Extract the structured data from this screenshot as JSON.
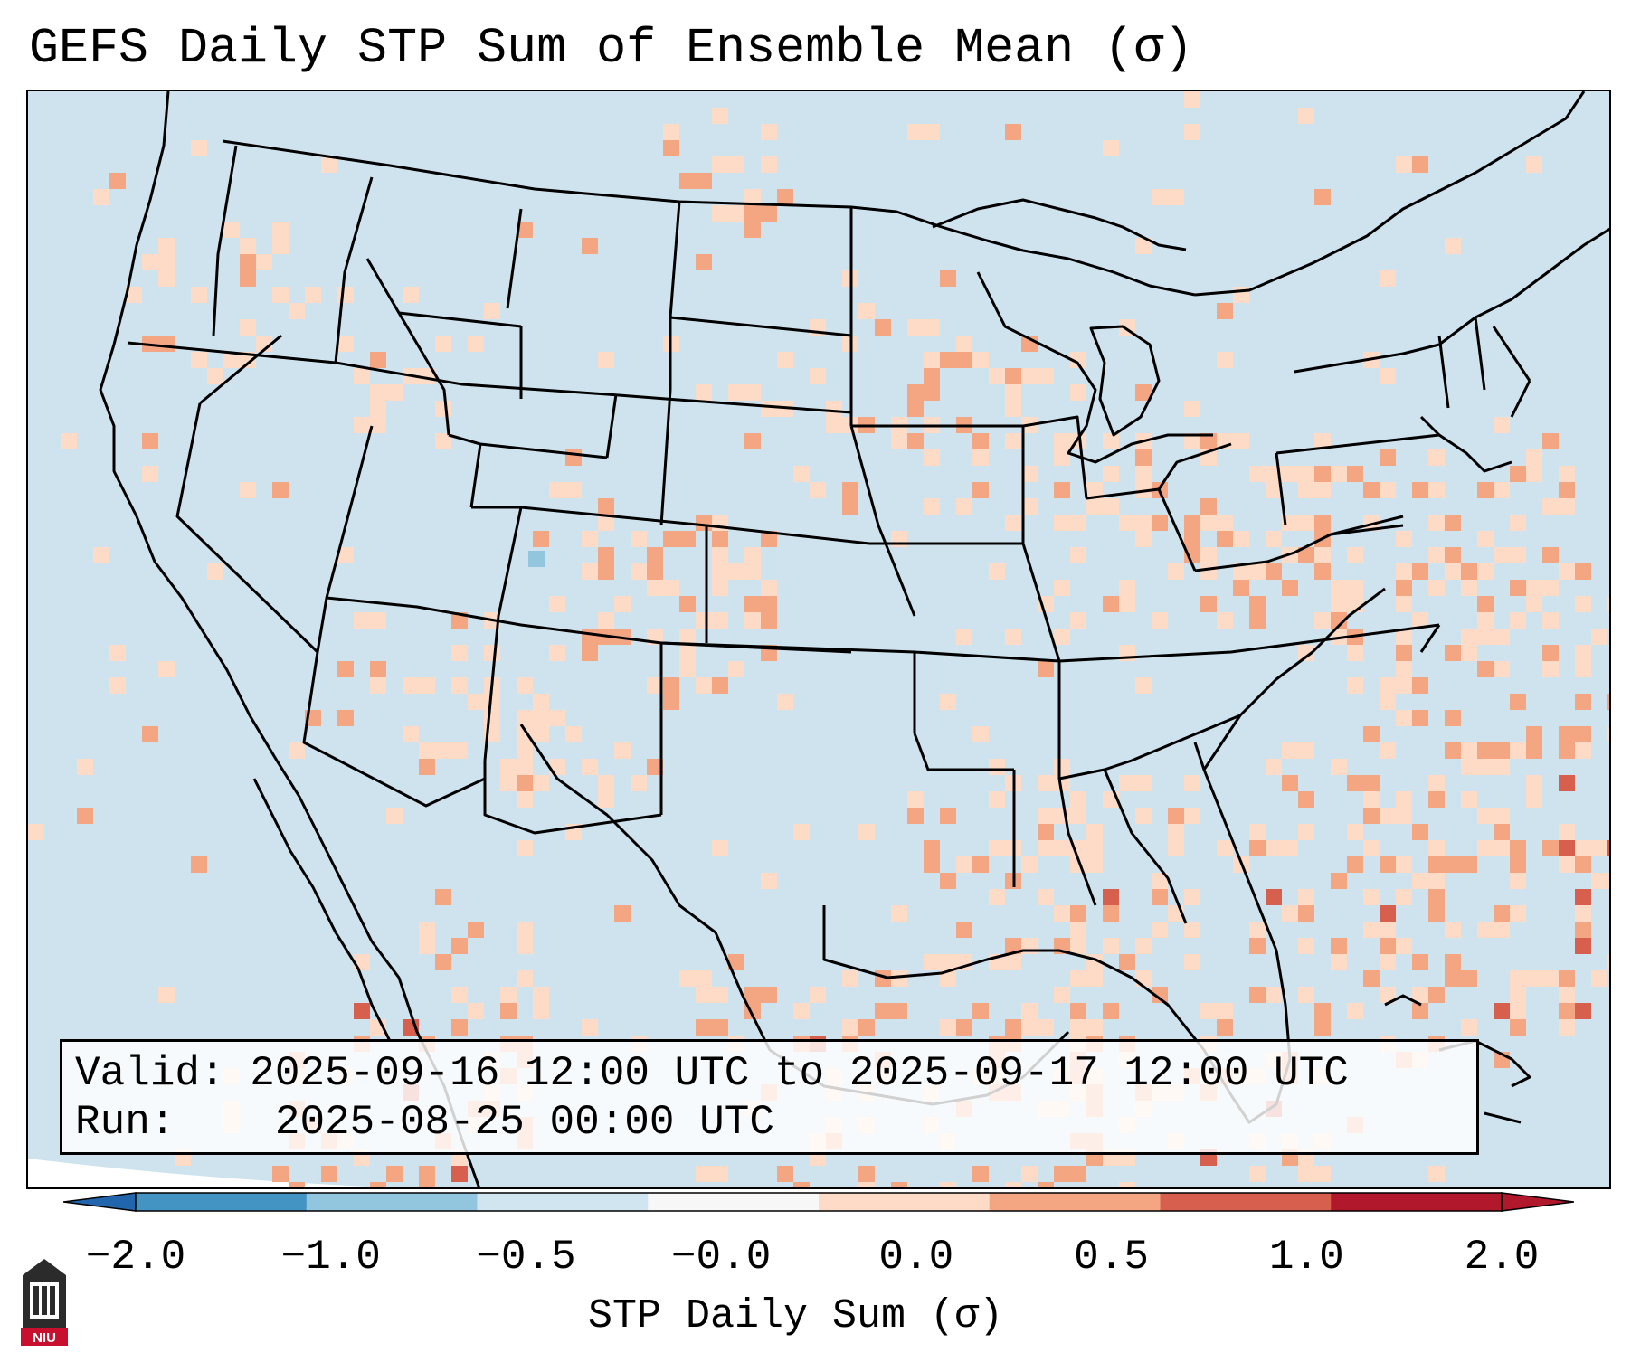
{
  "title": "GEFS Daily STP Sum of Ensemble Mean (σ)",
  "info": {
    "valid_label": "Valid:",
    "valid_value": "2025-09-16 12:00 UTC to 2025-09-17 12:00 UTC",
    "run_label": "Run:",
    "run_value": "2025-08-25 00:00 UTC"
  },
  "colorbar": {
    "label": "STP Daily Sum (σ)",
    "ticks": [
      "−2.0",
      "−1.0",
      "−0.5",
      "−0.0",
      "0.0",
      "0.5",
      "1.0",
      "2.0"
    ],
    "colors": [
      "#4393c3",
      "#92c5de",
      "#d1e5f0",
      "#f7f7f7",
      "#fddbc7",
      "#f4a582",
      "#d6604d",
      "#b2182b"
    ],
    "extend_low": "#2166ac",
    "extend_high": "#b2182b"
  },
  "map": {
    "region": "CONUS",
    "ocean_color": "#cfe3ee",
    "border_color": "#000000"
  },
  "logo": {
    "text": "NIU",
    "color": "#c8102e"
  }
}
